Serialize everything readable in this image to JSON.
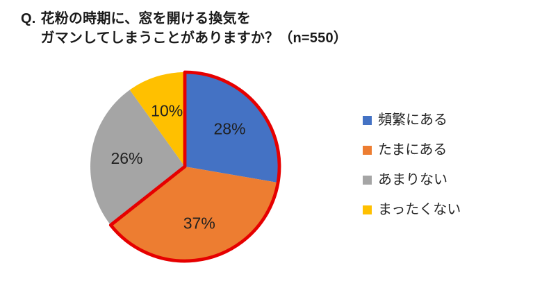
{
  "title": {
    "prefix": "Q.",
    "line1": "花粉の時期に、窓を開ける換気を",
    "line2": "ガマンしてしまうことがありますか？（n=550）"
  },
  "chart_data": {
    "type": "pie",
    "title": "Q. 花粉の時期に、窓を開ける換気をガマンしてしまうことがありますか？（n=550）",
    "sample_size": 550,
    "start_angle_deg": 0,
    "direction": "clockwise",
    "legend_position": "right",
    "data_labels": "percent",
    "label_color": "#1f1f1f",
    "segments": [
      {
        "label": "頻繁にある",
        "value": 28,
        "display": "28%",
        "color": "#4472C4"
      },
      {
        "label": "たまにある",
        "value": 37,
        "display": "37%",
        "color": "#ED7D31"
      },
      {
        "label": "あまりない",
        "value": 26,
        "display": "26%",
        "color": "#A5A5A5"
      },
      {
        "label": "まったくない",
        "value": 10,
        "display": "10%",
        "color": "#FFC000"
      }
    ],
    "highlight_outline": {
      "color": "#E60000",
      "covers_labels": [
        "頻繁にある",
        "たまにある"
      ],
      "combined_value": 65
    }
  }
}
